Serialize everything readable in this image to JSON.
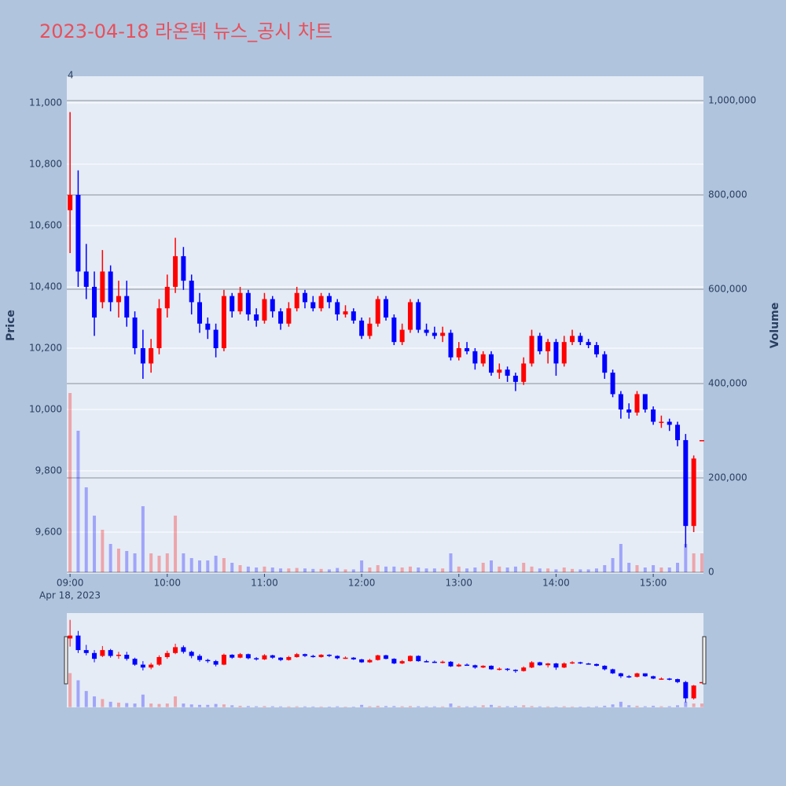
{
  "chart_data": {
    "type": "candlestick",
    "title": "2023-04-18 라온텍 뉴스_공시 차트",
    "y_axis_label": "Price",
    "y2_axis_label": "Volume",
    "x_date_label": "Apr 18, 2023",
    "annotation": "4",
    "increasing_color": "#ff0000",
    "decreasing_color": "#0000ff",
    "x": [
      "2023-04-18 09:00",
      "2023-04-18 09:05",
      "2023-04-18 09:10",
      "2023-04-18 09:15",
      "2023-04-18 09:20",
      "2023-04-18 09:25",
      "2023-04-18 09:30",
      "2023-04-18 09:35",
      "2023-04-18 09:40",
      "2023-04-18 09:45",
      "2023-04-18 09:50",
      "2023-04-18 09:55",
      "2023-04-18 10:00",
      "2023-04-18 10:05",
      "2023-04-18 10:10",
      "2023-04-18 10:15",
      "2023-04-18 10:20",
      "2023-04-18 10:25",
      "2023-04-18 10:30",
      "2023-04-18 10:35",
      "2023-04-18 10:40",
      "2023-04-18 10:45",
      "2023-04-18 10:50",
      "2023-04-18 10:55",
      "2023-04-18 11:00",
      "2023-04-18 11:05",
      "2023-04-18 11:10",
      "2023-04-18 11:15",
      "2023-04-18 11:20",
      "2023-04-18 11:25",
      "2023-04-18 11:30",
      "2023-04-18 11:35",
      "2023-04-18 11:40",
      "2023-04-18 11:45",
      "2023-04-18 11:50",
      "2023-04-18 11:55",
      "2023-04-18 12:00",
      "2023-04-18 12:05",
      "2023-04-18 12:10",
      "2023-04-18 12:15",
      "2023-04-18 12:20",
      "2023-04-18 12:25",
      "2023-04-18 12:30",
      "2023-04-18 12:35",
      "2023-04-18 12:40",
      "2023-04-18 12:45",
      "2023-04-18 12:50",
      "2023-04-18 12:55",
      "2023-04-18 13:00",
      "2023-04-18 13:05",
      "2023-04-18 13:10",
      "2023-04-18 13:15",
      "2023-04-18 13:20",
      "2023-04-18 13:25",
      "2023-04-18 13:30",
      "2023-04-18 13:35",
      "2023-04-18 13:40",
      "2023-04-18 13:45",
      "2023-04-18 13:50",
      "2023-04-18 13:55",
      "2023-04-18 14:00",
      "2023-04-18 14:05",
      "2023-04-18 14:10",
      "2023-04-18 14:15",
      "2023-04-18 14:20",
      "2023-04-18 14:25",
      "2023-04-18 14:30",
      "2023-04-18 14:35",
      "2023-04-18 14:40",
      "2023-04-18 14:45",
      "2023-04-18 14:50",
      "2023-04-18 14:55",
      "2023-04-18 15:00",
      "2023-04-18 15:05",
      "2023-04-18 15:10",
      "2023-04-18 15:15",
      "2023-04-18 15:20",
      "2023-04-18 15:25",
      "2023-04-18 15:30"
    ],
    "open": [
      10650,
      10700,
      10450,
      10400,
      10350,
      10450,
      10350,
      10370,
      10300,
      10200,
      10150,
      10200,
      10330,
      10400,
      10500,
      10420,
      10350,
      10280,
      10260,
      10200,
      10370,
      10320,
      10380,
      10310,
      10290,
      10360,
      10320,
      10280,
      10330,
      10380,
      10350,
      10330,
      10370,
      10350,
      10310,
      10320,
      10290,
      10240,
      10280,
      10360,
      10300,
      10220,
      10260,
      10350,
      10260,
      10250,
      10240,
      10250,
      10170,
      10200,
      10190,
      10150,
      10180,
      10120,
      10130,
      10110,
      10090,
      10150,
      10240,
      10190,
      10220,
      10150,
      10220,
      10240,
      10220,
      10210,
      10180,
      10120,
      10050,
      10000,
      9990,
      10050,
      10000,
      9960,
      9960,
      9950,
      9900,
      9620,
      9900
    ],
    "high": [
      10970,
      10780,
      10540,
      10450,
      10520,
      10470,
      10420,
      10420,
      10320,
      10260,
      10230,
      10360,
      10440,
      10560,
      10530,
      10440,
      10380,
      10300,
      10280,
      10390,
      10380,
      10400,
      10390,
      10330,
      10380,
      10370,
      10330,
      10350,
      10400,
      10390,
      10370,
      10380,
      10380,
      10360,
      10340,
      10330,
      10300,
      10300,
      10370,
      10370,
      10310,
      10280,
      10360,
      10360,
      10280,
      10270,
      10270,
      10260,
      10220,
      10220,
      10200,
      10190,
      10190,
      10150,
      10140,
      10120,
      10170,
      10260,
      10250,
      10230,
      10230,
      10240,
      10260,
      10250,
      10230,
      10220,
      10190,
      10130,
      10060,
      10020,
      10060,
      10050,
      10010,
      9980,
      9970,
      9960,
      9920,
      9850,
      9900
    ],
    "low": [
      10510,
      10400,
      10360,
      10240,
      10330,
      10320,
      10300,
      10270,
      10180,
      10100,
      10120,
      10180,
      10300,
      10380,
      10390,
      10310,
      10250,
      10230,
      10170,
      10190,
      10300,
      10310,
      10290,
      10270,
      10280,
      10300,
      10260,
      10270,
      10320,
      10330,
      10320,
      10320,
      10330,
      10290,
      10300,
      10280,
      10230,
      10230,
      10270,
      10290,
      10210,
      10210,
      10250,
      10250,
      10240,
      10230,
      10220,
      10160,
      10160,
      10180,
      10130,
      10140,
      10110,
      10100,
      10090,
      10060,
      10080,
      10140,
      10180,
      10150,
      10110,
      10140,
      10210,
      10210,
      10200,
      10170,
      10100,
      10040,
      9970,
      9970,
      9980,
      9990,
      9950,
      9940,
      9930,
      9880,
      9550,
      9600,
      9900
    ],
    "close": [
      10700,
      10450,
      10400,
      10300,
      10450,
      10350,
      10370,
      10300,
      10200,
      10150,
      10200,
      10330,
      10400,
      10500,
      10420,
      10350,
      10280,
      10260,
      10200,
      10370,
      10320,
      10380,
      10310,
      10290,
      10360,
      10320,
      10280,
      10330,
      10380,
      10350,
      10330,
      10370,
      10350,
      10310,
      10320,
      10290,
      10240,
      10280,
      10360,
      10300,
      10220,
      10260,
      10350,
      10260,
      10250,
      10240,
      10250,
      10170,
      10200,
      10190,
      10150,
      10180,
      10120,
      10130,
      10110,
      10090,
      10150,
      10240,
      10190,
      10220,
      10150,
      10220,
      10240,
      10220,
      10210,
      10180,
      10120,
      10050,
      10000,
      9990,
      10050,
      10000,
      9960,
      9960,
      9950,
      9900,
      9620,
      9840,
      9900
    ],
    "volume": [
      380000,
      300000,
      180000,
      120000,
      90000,
      60000,
      50000,
      45000,
      40000,
      140000,
      40000,
      35000,
      40000,
      120000,
      40000,
      30000,
      25000,
      25000,
      35000,
      30000,
      20000,
      15000,
      12000,
      10000,
      12000,
      10000,
      8000,
      8000,
      9000,
      8000,
      7000,
      7000,
      6000,
      9000,
      6000,
      6000,
      25000,
      10000,
      15000,
      12000,
      12000,
      10000,
      12000,
      10000,
      8000,
      8000,
      8000,
      40000,
      12000,
      8000,
      10000,
      20000,
      25000,
      12000,
      10000,
      12000,
      20000,
      12000,
      8000,
      8000,
      6000,
      10000,
      7000,
      6000,
      6000,
      8000,
      15000,
      30000,
      60000,
      20000,
      15000,
      10000,
      15000,
      10000,
      10000,
      20000,
      60000,
      40000,
      40000
    ],
    "xlim": [
      "2023-04-18 08:58",
      "2023-04-18 15:31"
    ],
    "xticks": [
      {
        "value": "2023-04-18 09:00",
        "label": "09:00"
      },
      {
        "value": "2023-04-18 10:00",
        "label": "10:00"
      },
      {
        "value": "2023-04-18 11:00",
        "label": "11:00"
      },
      {
        "value": "2023-04-18 12:00",
        "label": "12:00"
      },
      {
        "value": "2023-04-18 13:00",
        "label": "13:00"
      },
      {
        "value": "2023-04-18 14:00",
        "label": "14:00"
      },
      {
        "value": "2023-04-18 15:00",
        "label": "15:00"
      }
    ],
    "ylim": [
      9464,
      11087
    ],
    "yticks": [
      {
        "value": 9600,
        "label": "9,600"
      },
      {
        "value": 9800,
        "label": "9,800"
      },
      {
        "value": 10000,
        "label": "10,000"
      },
      {
        "value": 10200,
        "label": "10,200"
      },
      {
        "value": 10400,
        "label": "10,400"
      },
      {
        "value": 10600,
        "label": "10,600"
      },
      {
        "value": 10800,
        "label": "10,800"
      },
      {
        "value": 11000,
        "label": "11,000"
      }
    ],
    "y2lim": [
      -3300,
      1051700
    ],
    "y2ticks": [
      0,
      {
        "value": 200000,
        "label": "200,000"
      },
      {
        "value": 400000,
        "label": "400,000"
      },
      {
        "value": 600000,
        "label": "600,000"
      },
      {
        "value": 800000,
        "label": "800,000"
      },
      {
        "value": 1000000,
        "label": "1,000,000"
      }
    ],
    "grid": true,
    "range_slider": true
  }
}
